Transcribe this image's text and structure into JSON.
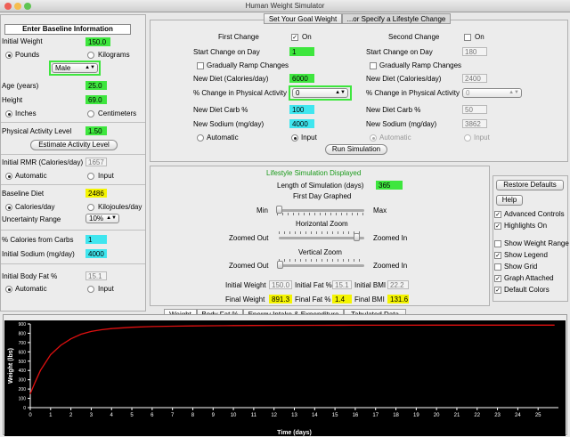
{
  "window": {
    "title": "Human Weight Simulator"
  },
  "baseline": {
    "header": "Enter Baseline Information",
    "initial_weight_label": "Initial Weight",
    "initial_weight_value": "150.0",
    "pounds_label": "Pounds",
    "kilograms_label": "Kilograms",
    "sex_value": "Male",
    "age_label": "Age (years)",
    "age_value": "25.0",
    "height_label": "Height",
    "height_value": "69.0",
    "inches_label": "Inches",
    "centimeters_label": "Centimeters",
    "pal_label": "Physical Activity Level",
    "pal_value": "1.50",
    "estimate_button": "Estimate Activity Level",
    "rmr_label": "Initial RMR (Calories/day)",
    "rmr_value": "1657",
    "automatic_label": "Automatic",
    "input_label": "Input",
    "diet_label": "Baseline Diet",
    "diet_value": "2486",
    "calories_label": "Calories/day",
    "kilojoules_label": "Kilojoules/day",
    "uncertainty_label": "Uncertainty Range",
    "uncertainty_value": "10%",
    "carbs_label": "% Calories from Carbs",
    "carbs_value": "1",
    "sodium_label": "Initial Sodium (mg/day)",
    "sodium_value": "4000",
    "bodyfat_label": "Initial Body Fat %",
    "bodyfat_value": "15.1",
    "bf_automatic_label": "Automatic",
    "bf_input_label": "Input"
  },
  "goal": {
    "tab_goal": "Set Your Goal Weight",
    "tab_lifestyle": "...or Specify a Lifestyle Change",
    "first_change": "First Change",
    "second_change": "Second Change",
    "on_label": "On",
    "start_label": "Start Change on Day",
    "start1": "1",
    "start2": "180",
    "ramp_label": "Gradually Ramp Changes",
    "newdiet_label": "New Diet (Calories/day)",
    "newdiet1": "6000",
    "newdiet2": "2400",
    "pchange_label": "% Change in Physical Activity",
    "pchange1": "0",
    "pchange2": "0",
    "carb_label": "New Diet Carb %",
    "carb1": "100",
    "carb2": "50",
    "sodium_label": "New Sodium (mg/day)",
    "sodium1": "4000",
    "sodium2": "3862",
    "automatic_label": "Automatic",
    "input_label": "Input",
    "run_button": "Run Simulation"
  },
  "sim": {
    "header": "Lifestyle Simulation Displayed",
    "length_label": "Length of Simulation (days)",
    "length_value": "365",
    "first_day_label": "First Day Graphed",
    "min_label": "Min",
    "max_label": "Max",
    "hzoom_label": "Horizontal Zoom",
    "zoomed_out": "Zoomed Out",
    "zoomed_in": "Zoomed In",
    "vzoom_label": "Vertical Zoom",
    "init_weight_label": "Initial Weight",
    "init_weight": "150.0",
    "init_fat_label": "Initial Fat %",
    "init_fat": "15.1",
    "init_bmi_label": "Initial BMI",
    "init_bmi": "22.2",
    "final_weight_label": "Final Weight",
    "final_weight": "891.3",
    "final_fat_label": "Final Fat %",
    "final_fat": "1.4",
    "final_bmi_label": "Final BMI",
    "final_bmi": "131.6"
  },
  "options": {
    "restore_button": "Restore Defaults",
    "help_button": "Help",
    "advanced": "Advanced Controls",
    "highlights": "Highlights On",
    "show_range": "Show Weight Range",
    "show_legend": "Show Legend",
    "show_grid": "Show Grid",
    "graph_attached": "Graph Attached",
    "default_colors": "Default Colors"
  },
  "graph_tabs": [
    "Weight",
    "Body Fat %",
    "Energy Intake & Expenditure",
    "Tabulated Data"
  ],
  "colors": {
    "line": "#e01010",
    "plot_bg": "#000000",
    "axis": "#ffffff",
    "green": "#3ee63e",
    "yellow": "#f4f400",
    "cyan": "#3fe6ef"
  },
  "chart_data": {
    "type": "line",
    "xlabel": "Time (days)",
    "ylabel": "Weight (lbs)",
    "xlim": [
      0,
      26
    ],
    "ylim": [
      0,
      900
    ],
    "x_ticks": [
      "0",
      "1",
      "2",
      "3",
      "4",
      "5",
      "6",
      "7",
      "8",
      "9",
      "10",
      "11",
      "12",
      "13",
      "14",
      "15",
      "16",
      "17",
      "18",
      "19",
      "20",
      "21",
      "22",
      "23",
      "24",
      "25"
    ],
    "y_ticks": [
      "0",
      "100",
      "200",
      "300",
      "400",
      "500",
      "600",
      "700",
      "800",
      "900"
    ],
    "series": [
      {
        "color": "#e01010",
        "x": [
          0,
          0.25,
          0.5,
          1,
          1.5,
          2,
          2.5,
          3,
          3.5,
          4,
          5,
          6,
          7,
          8,
          9,
          10,
          11,
          12,
          14,
          16,
          18,
          20,
          24,
          25.8
        ],
        "y": [
          150,
          280,
          400,
          570,
          670,
          740,
          790,
          820,
          838,
          850,
          865,
          872,
          876,
          879,
          881,
          883,
          884,
          885,
          886,
          887,
          887,
          888,
          888,
          888
        ]
      }
    ]
  }
}
